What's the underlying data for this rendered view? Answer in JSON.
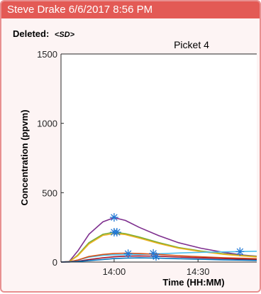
{
  "header": {
    "title": "Steve Drake 6/6/2017 8:56 PM",
    "deleted_label": "Deleted:",
    "deleted_value": "<SD>"
  },
  "colors": {
    "header_bg": "#e35a55",
    "card_border": "#e89090",
    "card_bg": "#fdf4f4"
  },
  "chart_data": {
    "type": "line",
    "title": "Picket 4",
    "xlabel": "Time (HH:MM)",
    "ylabel": "Concentration (ppvm)",
    "x_unit": "minutes after 13:41",
    "xlim": [
      0,
      70
    ],
    "ylim": [
      0,
      1500
    ],
    "x_ticks": [
      {
        "value": 19,
        "label": "14:00"
      },
      {
        "value": 49,
        "label": "14:30"
      }
    ],
    "y_ticks": [
      {
        "value": 0,
        "label": "0"
      },
      {
        "value": 500,
        "label": "500"
      },
      {
        "value": 1000,
        "label": "1000"
      },
      {
        "value": 1500,
        "label": "1500"
      }
    ],
    "grid": false,
    "series": [
      {
        "color": "#7e2f8e",
        "x": [
          0,
          3,
          6,
          10,
          15,
          19,
          23,
          28,
          35,
          42,
          50,
          58,
          65,
          70
        ],
        "y": [
          0,
          5,
          80,
          200,
          290,
          320,
          300,
          250,
          190,
          140,
          100,
          70,
          50,
          42
        ]
      },
      {
        "color": "#77ac30",
        "x": [
          0,
          3,
          6,
          10,
          15,
          19,
          23,
          28,
          35,
          42,
          50,
          58,
          65,
          70
        ],
        "y": [
          0,
          3,
          50,
          140,
          200,
          215,
          205,
          180,
          140,
          105,
          80,
          60,
          47,
          40
        ]
      },
      {
        "color": "#edb120",
        "x": [
          0,
          3,
          6,
          10,
          15,
          19,
          23,
          28,
          35,
          42,
          50,
          58,
          65,
          70
        ],
        "y": [
          0,
          3,
          45,
          130,
          192,
          205,
          198,
          172,
          133,
          100,
          76,
          56,
          44,
          37
        ]
      },
      {
        "color": "#4dbeee",
        "x": [
          0,
          3,
          6,
          10,
          15,
          19,
          23,
          28,
          35,
          42,
          50,
          58,
          65,
          70
        ],
        "y": [
          0,
          2,
          15,
          35,
          48,
          52,
          53,
          55,
          60,
          65,
          70,
          73,
          76,
          78
        ]
      },
      {
        "color": "#d95319",
        "x": [
          0,
          3,
          6,
          10,
          15,
          19,
          23,
          28,
          35,
          42,
          50,
          58,
          65,
          70
        ],
        "y": [
          0,
          2,
          15,
          40,
          55,
          62,
          64,
          62,
          55,
          46,
          38,
          31,
          27,
          24
        ]
      },
      {
        "color": "#a2142f",
        "x": [
          0,
          3,
          6,
          10,
          15,
          19,
          23,
          28,
          35,
          42,
          50,
          58,
          65,
          70
        ],
        "y": [
          0,
          1,
          6,
          18,
          30,
          38,
          42,
          44,
          42,
          36,
          30,
          25,
          21,
          18
        ]
      },
      {
        "color": "#0072bd",
        "x": [
          0,
          3,
          6,
          10,
          15,
          19,
          23,
          28,
          35,
          42,
          50,
          58,
          65,
          70
        ],
        "y": [
          0,
          1,
          4,
          10,
          18,
          25,
          28,
          30,
          28,
          24,
          20,
          16,
          14,
          12
        ]
      }
    ],
    "markers": [
      {
        "x": 19,
        "y": 322
      },
      {
        "x": 19,
        "y": 215
      },
      {
        "x": 20,
        "y": 215
      },
      {
        "x": 24,
        "y": 60
      },
      {
        "x": 33,
        "y": 62
      },
      {
        "x": 34,
        "y": 40
      },
      {
        "x": 64,
        "y": 75
      }
    ],
    "marker_color": "#1f77d4"
  }
}
